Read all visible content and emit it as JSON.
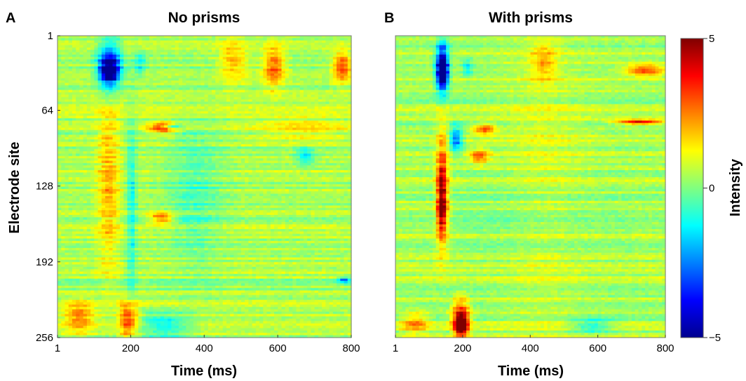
{
  "figure": {
    "colorbar": {
      "label": "Intensity",
      "ticks": [
        {
          "value": 5,
          "label": "5"
        },
        {
          "value": 0,
          "label": "0"
        },
        {
          "value": -5,
          "label": "−5"
        }
      ],
      "range": [
        -5,
        5
      ],
      "colormap": "jet",
      "colors": [
        "#00008f",
        "#0000ff",
        "#0080ff",
        "#00ffff",
        "#80ff80",
        "#ffff00",
        "#ff8000",
        "#ff0000",
        "#800000"
      ]
    }
  },
  "chart_data": [
    {
      "type": "heatmap",
      "panel_letter": "A",
      "title": "No prisms",
      "xlabel": "Time (ms)",
      "ylabel": "Electrode site",
      "xlim": [
        1,
        800
      ],
      "ylim": [
        1,
        256
      ],
      "x_ticks": [
        {
          "value": 1,
          "label": "1"
        },
        {
          "value": 200,
          "label": "200"
        },
        {
          "value": 400,
          "label": "400"
        },
        {
          "value": 600,
          "label": "600"
        },
        {
          "value": 800,
          "label": "800"
        }
      ],
      "y_ticks": [
        {
          "value": 1,
          "label": "1"
        },
        {
          "value": 64,
          "label": "64"
        },
        {
          "value": 128,
          "label": "128"
        },
        {
          "value": 192,
          "label": "192"
        },
        {
          "value": 256,
          "label": "256"
        }
      ],
      "features": [
        {
          "t": [
            110,
            175
          ],
          "sites": [
            5,
            50
          ],
          "value": -3.8
        },
        {
          "t": [
            120,
            165
          ],
          "sites": [
            20,
            40
          ],
          "value": -4.5
        },
        {
          "t": [
            210,
            240
          ],
          "sites": [
            15,
            35
          ],
          "value": -1.5
        },
        {
          "t": [
            110,
            170
          ],
          "sites": [
            58,
            200
          ],
          "value": 1.6
        },
        {
          "t": [
            190,
            215
          ],
          "sites": [
            60,
            240
          ],
          "value": -1.5
        },
        {
          "t": [
            250,
            330
          ],
          "sites": [
            74,
            84
          ],
          "value": 2.8
        },
        {
          "t": [
            290,
            340
          ],
          "sites": [
            76,
            80
          ],
          "value": -3.0
        },
        {
          "t": [
            250,
            320
          ],
          "sites": [
            150,
            160
          ],
          "value": 2.6
        },
        {
          "t": [
            440,
            520
          ],
          "sites": [
            5,
            40
          ],
          "value": 1.6
        },
        {
          "t": [
            560,
            620
          ],
          "sites": [
            10,
            45
          ],
          "value": 2.4
        },
        {
          "t": [
            750,
            800
          ],
          "sites": [
            15,
            40
          ],
          "value": 2.8
        },
        {
          "t": [
            170,
            220
          ],
          "sites": [
            225,
            256
          ],
          "value": 3.0
        },
        {
          "t": [
            220,
            360
          ],
          "sites": [
            235,
            256
          ],
          "value": -1.8
        },
        {
          "t": [
            20,
            100
          ],
          "sites": [
            225,
            252
          ],
          "value": 2.0
        },
        {
          "t": [
            300,
            450
          ],
          "sites": [
            70,
            200
          ],
          "value": -0.9
        },
        {
          "t": [
            650,
            700
          ],
          "sites": [
            95,
            110
          ],
          "value": -1.8
        },
        {
          "t": [
            760,
            800
          ],
          "sites": [
            205,
            210
          ],
          "value": -3.0
        },
        {
          "t": [
            550,
            800
          ],
          "sites": [
            70,
            90
          ],
          "value": 1.0
        }
      ]
    },
    {
      "type": "heatmap",
      "panel_letter": "B",
      "title": "With prisms",
      "xlabel": "Time (ms)",
      "ylabel": "",
      "xlim": [
        1,
        800
      ],
      "ylim": [
        1,
        256
      ],
      "x_ticks": [
        {
          "value": 1,
          "label": "1"
        },
        {
          "value": 200,
          "label": "200"
        },
        {
          "value": 400,
          "label": "400"
        },
        {
          "value": 600,
          "label": "600"
        },
        {
          "value": 800,
          "label": "800"
        }
      ],
      "features": [
        {
          "t": [
            120,
            160
          ],
          "sites": [
            5,
            50
          ],
          "value": -3.8
        },
        {
          "t": [
            125,
            155
          ],
          "sites": [
            15,
            45
          ],
          "value": -4.6
        },
        {
          "t": [
            200,
            230
          ],
          "sites": [
            20,
            35
          ],
          "value": -1.6
        },
        {
          "t": [
            120,
            160
          ],
          "sites": [
            78,
            180
          ],
          "value": 2.6
        },
        {
          "t": [
            125,
            150
          ],
          "sites": [
            110,
            170
          ],
          "value": 3.4
        },
        {
          "t": [
            160,
            200
          ],
          "sites": [
            78,
            100
          ],
          "value": -3.0
        },
        {
          "t": [
            230,
            300
          ],
          "sites": [
            76,
            84
          ],
          "value": 3.0
        },
        {
          "t": [
            220,
            280
          ],
          "sites": [
            95,
            110
          ],
          "value": 2.2
        },
        {
          "t": [
            170,
            220
          ],
          "sites": [
            225,
            256
          ],
          "value": 4.4
        },
        {
          "t": [
            180,
            210
          ],
          "sites": [
            240,
            252
          ],
          "value": 4.8
        },
        {
          "t": [
            400,
            480
          ],
          "sites": [
            5,
            40
          ],
          "value": 1.5
        },
        {
          "t": [
            680,
            800
          ],
          "sites": [
            25,
            35
          ],
          "value": 3.0
        },
        {
          "t": [
            650,
            800
          ],
          "sites": [
            72,
            76
          ],
          "value": 3.4
        },
        {
          "t": [
            520,
            640
          ],
          "sites": [
            240,
            252
          ],
          "value": -1.6
        },
        {
          "t": [
            20,
            100
          ],
          "sites": [
            235,
            252
          ],
          "value": 1.8
        },
        {
          "t": [
            200,
            600
          ],
          "sites": [
            110,
            200
          ],
          "value": -0.5
        },
        {
          "t": [
            320,
            560
          ],
          "sites": [
            5,
            256
          ],
          "value": 0.6
        }
      ]
    }
  ]
}
